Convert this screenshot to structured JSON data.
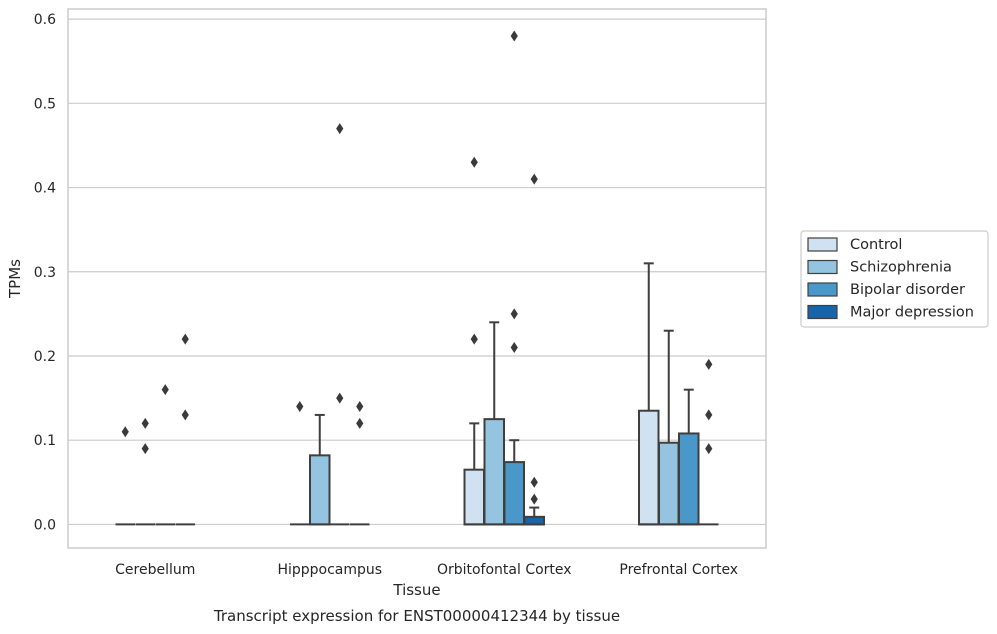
{
  "chart_data": {
    "type": "box",
    "title": "",
    "caption": "Transcript expression for ENST00000412344 by tissue",
    "xlabel": "Tissue",
    "ylabel": "TPMs",
    "ylim": [
      -0.028,
      0.612
    ],
    "yticks": [
      0.0,
      0.1,
      0.2,
      0.3,
      0.4,
      0.5,
      0.6
    ],
    "ytick_labels": [
      "0.0",
      "0.1",
      "0.2",
      "0.3",
      "0.4",
      "0.5",
      "0.6"
    ],
    "grid": "horizontal",
    "legend_position": "right",
    "categories": [
      "Cerebellum",
      "Hipppocampus",
      "Orbitofontal Cortex",
      "Prefrontal Cortex"
    ],
    "series": [
      {
        "name": "Control",
        "color": "#d0e1f2",
        "boxes": [
          {
            "min": 0,
            "q1": 0,
            "median": 0,
            "q3": 0,
            "max": 0,
            "outliers": [
              0.11
            ]
          },
          {
            "min": 0,
            "q1": 0,
            "median": 0,
            "q3": 0,
            "max": 0,
            "outliers": [
              0.14
            ]
          },
          {
            "min": 0,
            "q1": 0,
            "median": 0,
            "q3": 0.065,
            "max": 0.12,
            "outliers": [
              0.43,
              0.22
            ]
          },
          {
            "min": 0,
            "q1": 0,
            "median": 0,
            "q3": 0.135,
            "max": 0.31,
            "outliers": []
          }
        ]
      },
      {
        "name": "Schizophrenia",
        "color": "#94c4df",
        "boxes": [
          {
            "min": 0,
            "q1": 0,
            "median": 0,
            "q3": 0,
            "max": 0,
            "outliers": [
              0.12,
              0.09
            ]
          },
          {
            "min": 0,
            "q1": 0,
            "median": 0,
            "q3": 0.082,
            "max": 0.13,
            "outliers": []
          },
          {
            "min": 0,
            "q1": 0,
            "median": 0,
            "q3": 0.125,
            "max": 0.24,
            "outliers": []
          },
          {
            "min": 0,
            "q1": 0,
            "median": 0,
            "q3": 0.097,
            "max": 0.23,
            "outliers": []
          }
        ]
      },
      {
        "name": "Bipolar disorder",
        "color": "#4a98c9",
        "boxes": [
          {
            "min": 0,
            "q1": 0,
            "median": 0,
            "q3": 0,
            "max": 0,
            "outliers": [
              0.16
            ]
          },
          {
            "min": 0,
            "q1": 0,
            "median": 0,
            "q3": 0,
            "max": 0,
            "outliers": [
              0.47,
              0.15
            ]
          },
          {
            "min": 0,
            "q1": 0,
            "median": 0,
            "q3": 0.074,
            "max": 0.1,
            "outliers": [
              0.58,
              0.25,
              0.21
            ]
          },
          {
            "min": 0,
            "q1": 0,
            "median": 0,
            "q3": 0.108,
            "max": 0.16,
            "outliers": []
          }
        ]
      },
      {
        "name": "Major depression",
        "color": "#1764ab",
        "boxes": [
          {
            "min": 0,
            "q1": 0,
            "median": 0,
            "q3": 0,
            "max": 0,
            "outliers": [
              0.22,
              0.13
            ]
          },
          {
            "min": 0,
            "q1": 0,
            "median": 0,
            "q3": 0,
            "max": 0,
            "outliers": [
              0.14,
              0.12
            ]
          },
          {
            "min": 0,
            "q1": 0,
            "median": 0,
            "q3": 0.009,
            "max": 0.02,
            "outliers": [
              0.41,
              0.05,
              0.03
            ]
          },
          {
            "min": 0,
            "q1": 0,
            "median": 0,
            "q3": 0,
            "max": 0,
            "outliers": [
              0.19,
              0.13,
              0.09
            ]
          }
        ]
      }
    ]
  },
  "colors": {
    "edge": "#3f3f3f",
    "grid": "#cccccc",
    "spine": "#cccccc"
  }
}
